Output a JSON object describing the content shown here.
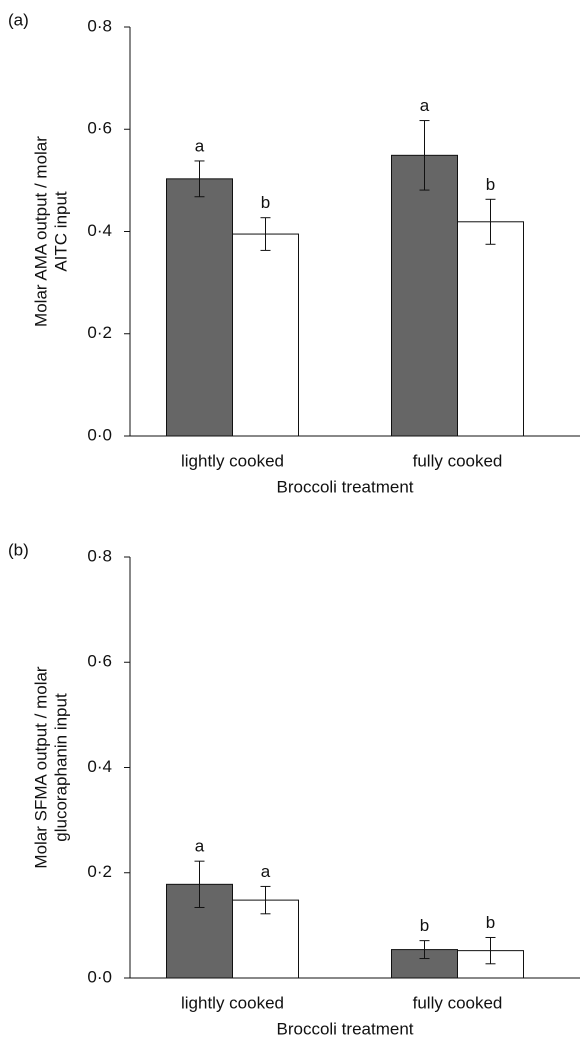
{
  "chart_data": [
    {
      "type": "bar",
      "panel_label": "(a)",
      "ylabel": [
        "Molar AMA output / molar",
        "AITC input"
      ],
      "xlabel": "Broccoli treatment",
      "categories": [
        "lightly cooked",
        "fully cooked"
      ],
      "series": [
        {
          "color": "#666666",
          "values": [
            0.503,
            0.549
          ],
          "errors": [
            0.035,
            0.068
          ],
          "letters": [
            "a",
            "a"
          ]
        },
        {
          "color": "#ffffff",
          "values": [
            0.395,
            0.419
          ],
          "errors": [
            0.032,
            0.044
          ],
          "letters": [
            "b",
            "b"
          ]
        }
      ],
      "ylim": [
        0,
        0.8
      ],
      "yticks": [
        {
          "value": 0,
          "label": "0·0"
        },
        {
          "value": 0.2,
          "label": "0·2"
        },
        {
          "value": 0.4,
          "label": "0·4"
        },
        {
          "value": 0.6,
          "label": "0·6"
        },
        {
          "value": 0.8,
          "label": "0·8"
        }
      ]
    },
    {
      "type": "bar",
      "panel_label": "(b)",
      "ylabel": [
        "Molar SFMA output / molar",
        "glucoraphanin input"
      ],
      "xlabel": "Broccoli treatment",
      "categories": [
        "lightly cooked",
        "fully cooked"
      ],
      "series": [
        {
          "color": "#666666",
          "values": [
            0.178,
            0.054
          ],
          "errors": [
            0.044,
            0.017
          ],
          "letters": [
            "a",
            "b"
          ]
        },
        {
          "color": "#ffffff",
          "values": [
            0.148,
            0.052
          ],
          "errors": [
            0.026,
            0.025
          ],
          "letters": [
            "a",
            "b"
          ]
        }
      ],
      "ylim": [
        0,
        0.8
      ],
      "yticks": [
        {
          "value": 0,
          "label": "0·0"
        },
        {
          "value": 0.2,
          "label": "0·2"
        },
        {
          "value": 0.4,
          "label": "0·4"
        },
        {
          "value": 0.6,
          "label": "0·6"
        },
        {
          "value": 0.8,
          "label": "0·8"
        }
      ]
    }
  ]
}
